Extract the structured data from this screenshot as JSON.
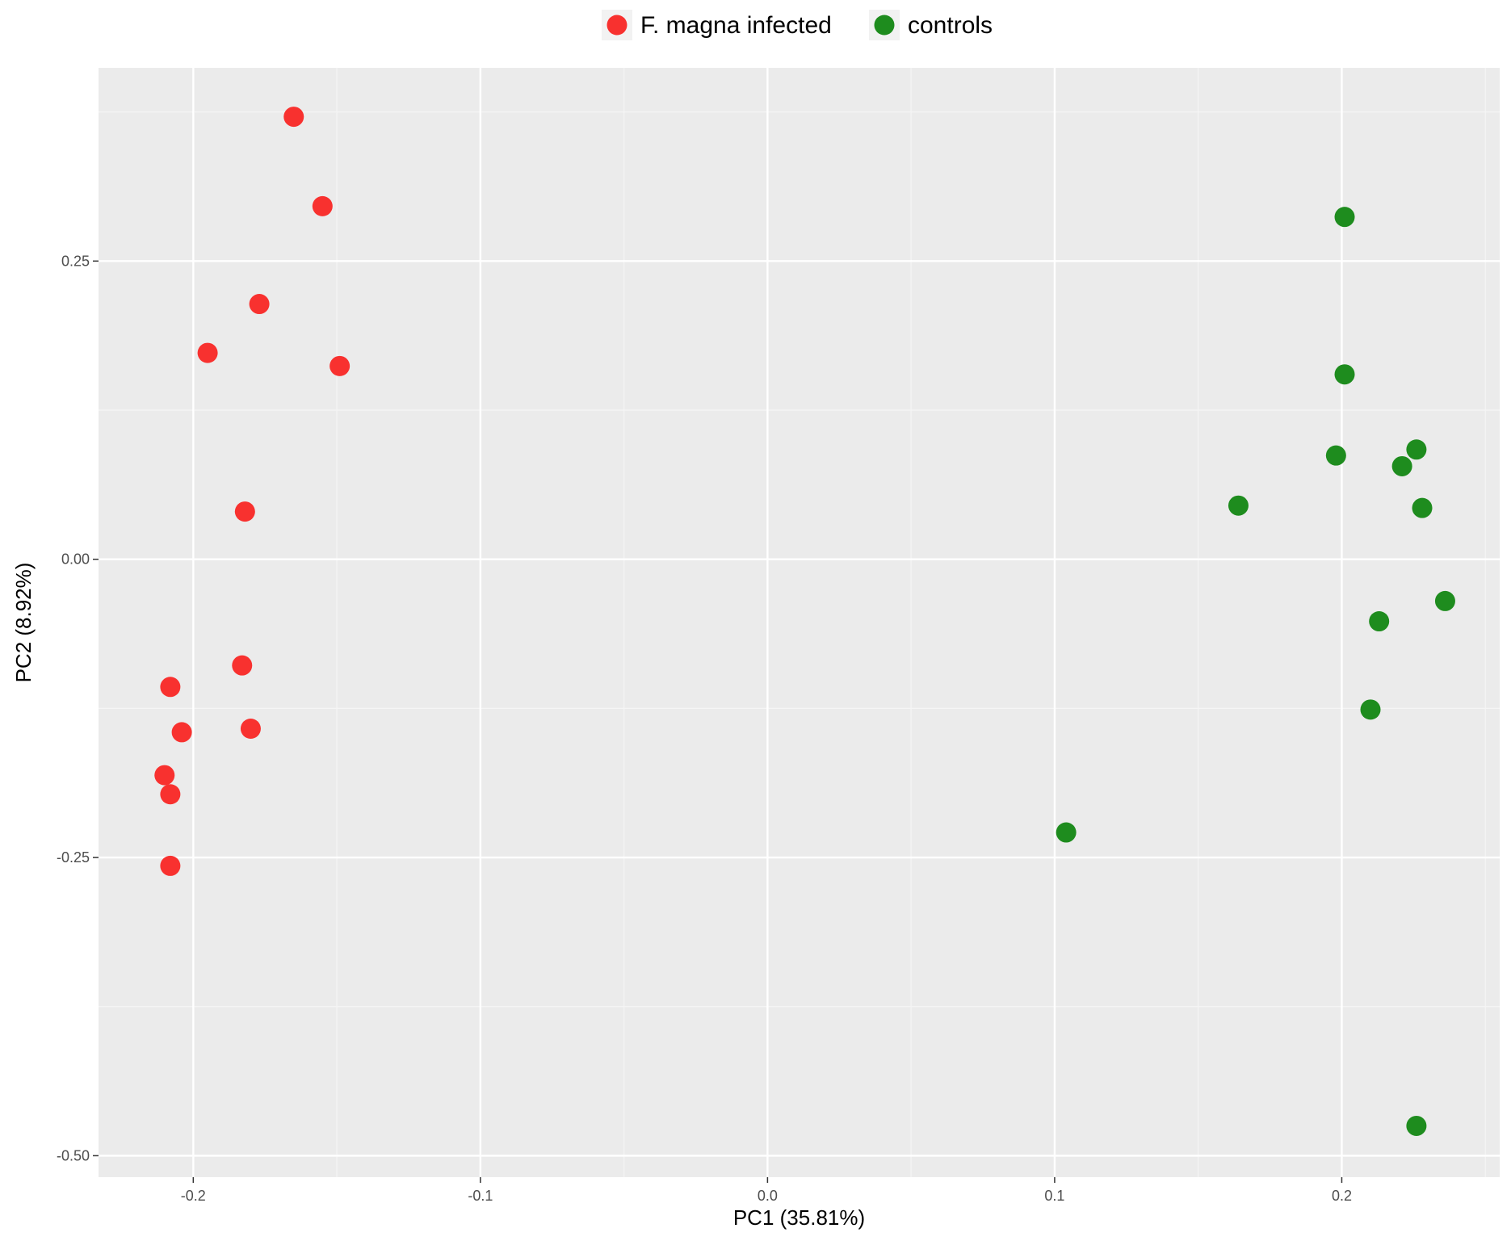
{
  "chart_data": {
    "type": "scatter",
    "title": "",
    "xlabel": "PC1 (35.81%)",
    "ylabel": "PC2 (8.92%)",
    "xlim": [
      -0.233,
      0.255
    ],
    "ylim": [
      -0.518,
      0.412
    ],
    "x_ticks": [
      -0.2,
      -0.1,
      0.0,
      0.1,
      0.2
    ],
    "x_tick_labels": [
      "-0.2",
      "-0.1",
      "0.0",
      "0.1",
      "0.2"
    ],
    "y_ticks": [
      -0.5,
      -0.25,
      0.0,
      0.25
    ],
    "y_tick_labels": [
      "-0.50",
      "-0.25",
      "0.00",
      "0.25"
    ],
    "grid": true,
    "legend_position": "top",
    "series": [
      {
        "name": "F. magna infected",
        "color": "#f8312f",
        "points": [
          {
            "x": -0.165,
            "y": 0.371
          },
          {
            "x": -0.155,
            "y": 0.296
          },
          {
            "x": -0.177,
            "y": 0.214
          },
          {
            "x": -0.195,
            "y": 0.173
          },
          {
            "x": -0.149,
            "y": 0.162
          },
          {
            "x": -0.182,
            "y": 0.04
          },
          {
            "x": -0.183,
            "y": -0.089
          },
          {
            "x": -0.208,
            "y": -0.107
          },
          {
            "x": -0.204,
            "y": -0.145
          },
          {
            "x": -0.18,
            "y": -0.142
          },
          {
            "x": -0.21,
            "y": -0.181
          },
          {
            "x": -0.208,
            "y": -0.197
          },
          {
            "x": -0.208,
            "y": -0.257
          }
        ]
      },
      {
        "name": "controls",
        "color": "#1e8c1e",
        "points": [
          {
            "x": 0.201,
            "y": 0.287
          },
          {
            "x": 0.201,
            "y": 0.155
          },
          {
            "x": 0.198,
            "y": 0.087
          },
          {
            "x": 0.226,
            "y": 0.092
          },
          {
            "x": 0.221,
            "y": 0.078
          },
          {
            "x": 0.164,
            "y": 0.045
          },
          {
            "x": 0.228,
            "y": 0.043
          },
          {
            "x": 0.236,
            "y": -0.035
          },
          {
            "x": 0.213,
            "y": -0.052
          },
          {
            "x": 0.21,
            "y": -0.126
          },
          {
            "x": 0.104,
            "y": -0.229
          },
          {
            "x": 0.226,
            "y": -0.475
          }
        ]
      }
    ]
  },
  "colors": {
    "panel_background": "#ebebeb",
    "grid_major": "#ffffff",
    "grid_minor": "#f5f5f5"
  }
}
